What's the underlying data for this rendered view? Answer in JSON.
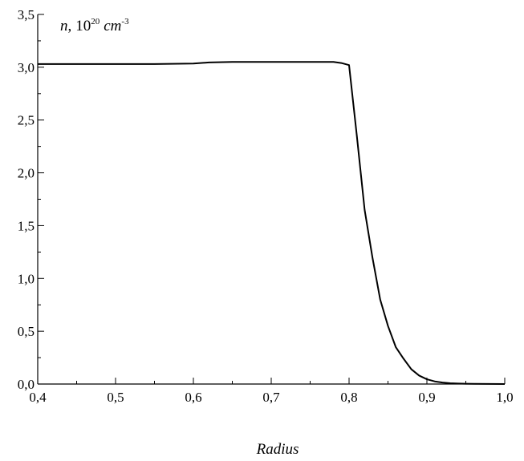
{
  "chart_data": {
    "type": "line",
    "title": "",
    "xlabel": "Radius",
    "ylabel": {
      "variable": "n",
      "separator": ",",
      "base": "10",
      "exponent": "20",
      "unit": "cm",
      "unit_exponent": "-3"
    },
    "xlim": [
      0.4,
      1.0
    ],
    "ylim": [
      0.0,
      3.5
    ],
    "x_ticks": [
      0.4,
      0.5,
      0.6,
      0.7,
      0.8,
      0.9,
      1.0
    ],
    "x_tick_labels": [
      "0,4",
      "0,5",
      "0,6",
      "0,7",
      "0,8",
      "0,9",
      "1,0"
    ],
    "y_ticks": [
      0.0,
      0.5,
      1.0,
      1.5,
      2.0,
      2.5,
      3.0,
      3.5
    ],
    "y_tick_labels": [
      "0,0",
      "0,5",
      "1,0",
      "1,5",
      "2,0",
      "2,5",
      "3,0",
      "3,5"
    ],
    "grid": false,
    "line_color": "#000000",
    "series": [
      {
        "x": [
          0.4,
          0.45,
          0.5,
          0.55,
          0.6,
          0.62,
          0.65,
          0.7,
          0.75,
          0.78,
          0.79,
          0.8,
          0.81,
          0.82,
          0.83,
          0.84,
          0.85,
          0.86,
          0.87,
          0.88,
          0.89,
          0.9,
          0.91,
          0.92,
          0.93,
          0.94,
          0.95,
          0.96,
          0.98,
          1.0
        ],
        "y": [
          3.03,
          3.03,
          3.03,
          3.03,
          3.035,
          3.045,
          3.05,
          3.05,
          3.05,
          3.05,
          3.04,
          3.02,
          2.35,
          1.65,
          1.2,
          0.8,
          0.55,
          0.35,
          0.24,
          0.14,
          0.08,
          0.045,
          0.025,
          0.014,
          0.008,
          0.005,
          0.003,
          0.002,
          0.001,
          0.0
        ]
      }
    ]
  }
}
